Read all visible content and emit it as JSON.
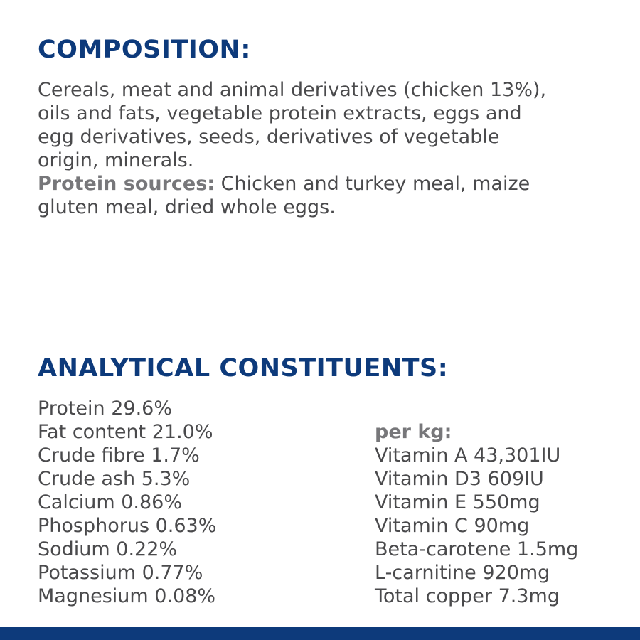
{
  "composition": {
    "heading": "COMPOSITION:",
    "lines": [
      "Cereals, meat and animal derivatives (chicken 13%),",
      "oils and fats, vegetable protein extracts, eggs and",
      "egg derivatives, seeds, derivatives of vegetable",
      "origin, minerals."
    ],
    "protein_label": "Protein sources:",
    "protein_lines": [
      " Chicken and turkey meal, maize",
      "gluten meal, dried whole eggs."
    ]
  },
  "analytical": {
    "heading": "ANALYTICAL CONSTITUENTS:",
    "left": [
      "Protein 29.6%",
      "Fat content 21.0%",
      "Crude fibre 1.7%",
      "Crude ash 5.3%",
      "Calcium 0.86%",
      "Phosphorus 0.63%",
      "Sodium 0.22%",
      "Potassium 0.77%",
      "Magnesium 0.08%"
    ],
    "per_kg_label": "per kg:",
    "right": [
      "Vitamin A 43,301IU",
      "Vitamin D3 609IU",
      "Vitamin E 550mg",
      "Vitamin C 90mg",
      "Beta-carotene 1.5mg",
      "L-carnitine 920mg",
      "Total copper 7.3mg"
    ]
  },
  "colors": {
    "heading": "#0d3a7b",
    "text": "#4a4a4c",
    "bold_label": "#77777a",
    "bar": "#0d3a7b"
  }
}
